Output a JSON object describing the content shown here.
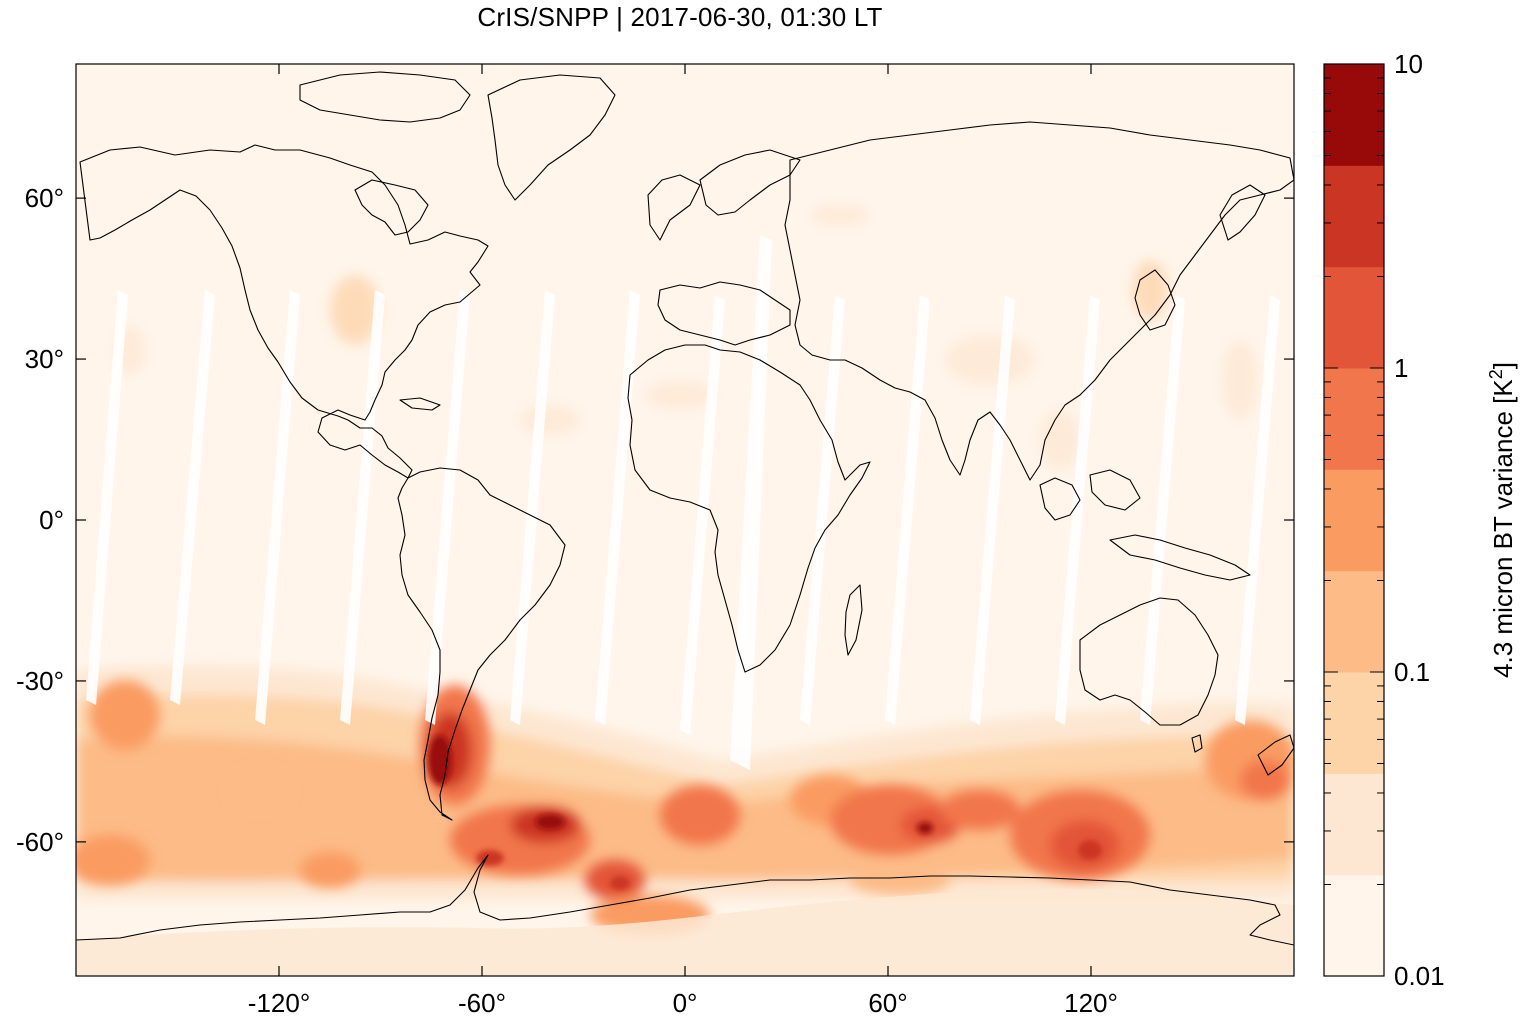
{
  "title": "CrIS/SNPP | 2017-06-30, 01:30 LT",
  "map": {
    "projection": "equirectangular",
    "lon_range": [
      -180,
      180
    ],
    "lat_range": [
      -85,
      85
    ],
    "x_ticks": [
      "-120°",
      "-60°",
      "0°",
      "60°",
      "120°"
    ],
    "y_ticks": [
      "60°",
      "30°",
      "0°",
      "-30°",
      "-60°"
    ],
    "background_color": "#fff5eb",
    "coastline_color": "#000000"
  },
  "colorbar": {
    "label": "4.3 micron BT variance [K",
    "label_sup": "2",
    "label_end": "]",
    "scale": "log",
    "range": [
      0.01,
      10
    ],
    "tick_labels": [
      "10",
      "1",
      "0.1",
      "0.01"
    ],
    "tick_values": [
      10,
      1,
      0.1,
      0.01
    ],
    "colors": [
      "#fff5eb",
      "#fee6ce",
      "#fdd0a2",
      "#fdae6b",
      "#fd8d3c",
      "#f16913",
      "#e6550d",
      "#d94801",
      "#a63603"
    ],
    "palette": [
      "#fff5eb",
      "#fde7d2",
      "#fdd3a8",
      "#fcbb87",
      "#fa9b62",
      "#f2764b",
      "#e35539",
      "#cb3524",
      "#980a0a"
    ]
  }
}
